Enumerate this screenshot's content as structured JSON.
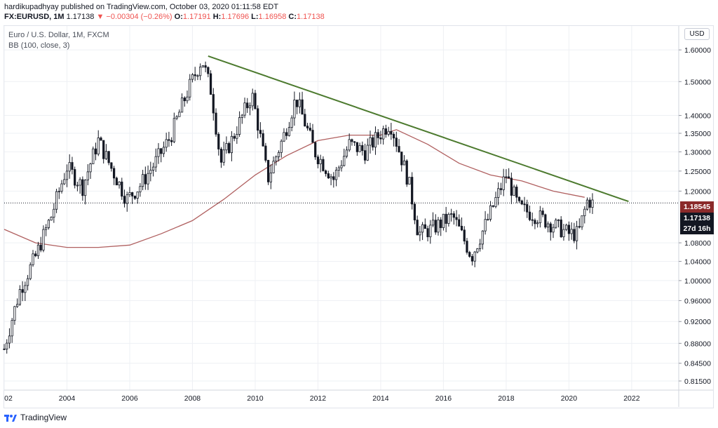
{
  "header": {
    "line1": "hardikupadhyay published on TradingView.com, October 03, 2020 01:11:58 EDT",
    "symbol": "FX:EURUSD, 1M",
    "last": "1.17138",
    "change": "▼ −0.00304 (−0.26%)",
    "o_label": "O:",
    "o_val": "1.17191",
    "h_label": "H:",
    "h_val": "1.17696",
    "l_label": "L:",
    "l_val": "1.16958",
    "c_label": "C:",
    "c_val": "1.17138"
  },
  "legend": {
    "title": "Euro / U.S. Dollar, 1M, FXCM",
    "indicator": "BB (100, close, 3)"
  },
  "price_tags": {
    "bb": "1.18545",
    "last": "1.17138",
    "timer": "27d 16h"
  },
  "currency_button": "USD",
  "brand": "TradingView",
  "colors": {
    "up": "#131722",
    "down": "#131722",
    "ma": "#b06060",
    "trendline": "#4c7a2e",
    "grid": "#eef0f4"
  },
  "chart_data": {
    "type": "candlestick",
    "x_axis_labels": [
      "02",
      "2004",
      "2006",
      "2008",
      "2010",
      "2012",
      "2014",
      "2016",
      "2018",
      "2020",
      "2022"
    ],
    "y_axis_labels": [
      "1.60000",
      "1.50000",
      "1.40000",
      "1.35000",
      "1.30000",
      "1.25000",
      "1.20000",
      "1.08000",
      "1.04000",
      "1.00000",
      "0.96000",
      "0.92000",
      "0.88000",
      "0.84500",
      "0.81500"
    ],
    "y_scale": "log",
    "ylim": [
      0.8,
      1.68
    ],
    "xlim": [
      2002.0,
      2023.5
    ],
    "close_path": [
      [
        2002.0,
        0.87
      ],
      [
        2002.5,
        0.98
      ],
      [
        2003.0,
        1.05
      ],
      [
        2003.5,
        1.14
      ],
      [
        2004.0,
        1.26
      ],
      [
        2004.5,
        1.21
      ],
      [
        2005.0,
        1.33
      ],
      [
        2005.4,
        1.26
      ],
      [
        2005.9,
        1.18
      ],
      [
        2006.3,
        1.21
      ],
      [
        2006.8,
        1.27
      ],
      [
        2007.3,
        1.34
      ],
      [
        2007.8,
        1.46
      ],
      [
        2008.3,
        1.57
      ],
      [
        2008.6,
        1.47
      ],
      [
        2008.9,
        1.27
      ],
      [
        2009.3,
        1.34
      ],
      [
        2009.9,
        1.46
      ],
      [
        2010.4,
        1.23
      ],
      [
        2010.9,
        1.34
      ],
      [
        2011.3,
        1.45
      ],
      [
        2011.9,
        1.3
      ],
      [
        2012.5,
        1.23
      ],
      [
        2013.0,
        1.32
      ],
      [
        2013.5,
        1.3
      ],
      [
        2014.3,
        1.38
      ],
      [
        2014.9,
        1.22
      ],
      [
        2015.2,
        1.1
      ],
      [
        2015.6,
        1.11
      ],
      [
        2016.3,
        1.14
      ],
      [
        2016.9,
        1.05
      ],
      [
        2017.4,
        1.13
      ],
      [
        2018.0,
        1.24
      ],
      [
        2018.4,
        1.16
      ],
      [
        2019.0,
        1.14
      ],
      [
        2019.5,
        1.12
      ],
      [
        2020.0,
        1.1
      ],
      [
        2020.3,
        1.1
      ],
      [
        2020.6,
        1.18
      ],
      [
        2020.75,
        1.17
      ]
    ],
    "ma_line": [
      [
        2002.0,
        1.11
      ],
      [
        2003.0,
        1.08
      ],
      [
        2004.0,
        1.07
      ],
      [
        2005.0,
        1.07
      ],
      [
        2006.0,
        1.075
      ],
      [
        2007.0,
        1.1
      ],
      [
        2008.0,
        1.13
      ],
      [
        2009.0,
        1.18
      ],
      [
        2010.0,
        1.24
      ],
      [
        2011.0,
        1.29
      ],
      [
        2012.0,
        1.33
      ],
      [
        2013.0,
        1.345
      ],
      [
        2014.0,
        1.345
      ],
      [
        2014.5,
        1.36
      ],
      [
        2015.5,
        1.32
      ],
      [
        2016.5,
        1.27
      ],
      [
        2017.5,
        1.24
      ],
      [
        2018.5,
        1.225
      ],
      [
        2019.5,
        1.2
      ],
      [
        2020.5,
        1.185
      ]
    ],
    "trendline": [
      [
        2008.5,
        1.58
      ],
      [
        2021.9,
        1.175
      ]
    ],
    "last_price": 1.17138,
    "bb_value": 1.18545
  }
}
